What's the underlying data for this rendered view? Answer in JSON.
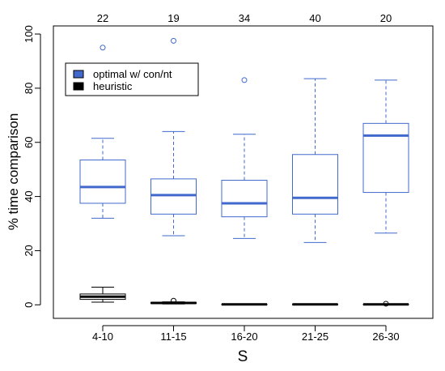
{
  "chart_data": {
    "type": "box",
    "xlabel": "S",
    "ylabel": "% time comparison",
    "ylim": [
      -5,
      103
    ],
    "yticks": [
      0,
      20,
      40,
      60,
      80,
      100
    ],
    "categories": [
      "4-10",
      "11-15",
      "16-20",
      "21-25",
      "26-30"
    ],
    "top_counts": [
      "22",
      "19",
      "34",
      "40",
      "20"
    ],
    "legend_position": "top-left",
    "series": [
      {
        "name": "optimal w/ con/nt",
        "color": "#4169cd",
        "boxes": [
          {
            "min": 32,
            "q1": 37.5,
            "median": 43.5,
            "q3": 53.5,
            "max": 61.5,
            "outliers": [
              95
            ]
          },
          {
            "min": 25.5,
            "q1": 33.5,
            "median": 40.5,
            "q3": 46.5,
            "max": 64,
            "outliers": [
              97.5
            ]
          },
          {
            "min": 24.5,
            "q1": 32.5,
            "median": 37.5,
            "q3": 46,
            "max": 63,
            "outliers": [
              83
            ]
          },
          {
            "min": 23,
            "q1": 33.5,
            "median": 39.5,
            "q3": 55.5,
            "max": 83.5,
            "outliers": []
          },
          {
            "min": 26.5,
            "q1": 41.5,
            "median": 62.5,
            "q3": 67,
            "max": 83,
            "outliers": []
          }
        ]
      },
      {
        "name": "heuristic",
        "color": "#000000",
        "boxes": [
          {
            "min": 1,
            "q1": 2,
            "median": 3,
            "q3": 4,
            "max": 6.5,
            "outliers": []
          },
          {
            "min": 0.3,
            "q1": 0.5,
            "median": 0.7,
            "q3": 0.9,
            "max": 1.1,
            "outliers": [
              1.5
            ]
          },
          {
            "min": 0.05,
            "q1": 0.1,
            "median": 0.15,
            "q3": 0.2,
            "max": 0.3,
            "outliers": []
          },
          {
            "min": 0.05,
            "q1": 0.1,
            "median": 0.15,
            "q3": 0.2,
            "max": 0.3,
            "outliers": []
          },
          {
            "min": 0.05,
            "q1": 0.1,
            "median": 0.15,
            "q3": 0.2,
            "max": 0.3,
            "outliers": [
              0.4
            ]
          }
        ]
      }
    ]
  }
}
